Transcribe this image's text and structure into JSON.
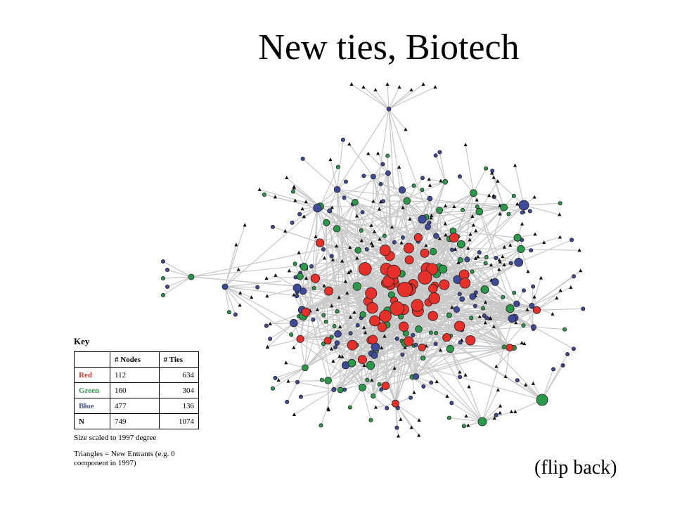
{
  "title": "New ties, Biotech",
  "key": {
    "title": "Key",
    "table": {
      "header": [
        "# Nodes",
        "# Ties"
      ],
      "rows": [
        [
          "Red",
          112,
          634
        ],
        [
          "Green",
          160,
          304
        ],
        [
          "Blue",
          477,
          136
        ],
        [
          "N",
          749,
          1074
        ]
      ]
    },
    "notes": [
      "Size scaled to 1997 degree",
      "Triangles =  New Entrants (e.g. 0 component in 1997)"
    ]
  },
  "footer": "(flip back)"
}
